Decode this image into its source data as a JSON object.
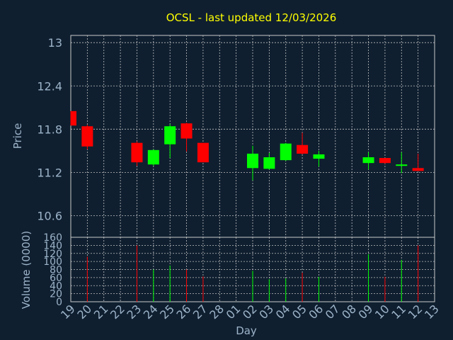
{
  "chart_data": {
    "title": "OCSL - last updated 12/03/2026",
    "xlabel": "Day",
    "price": {
      "type": "candlestick",
      "ylabel": "Price",
      "ylim": [
        10.3,
        13.1
      ],
      "yticks": [
        "10.6",
        "11.2",
        "11.8",
        "12.4",
        "13"
      ],
      "up_color": "#00ff00",
      "down_color": "#ff0000",
      "grid": true
    },
    "volume": {
      "type": "bar",
      "ylabel": "Volume (0000)",
      "ylim": [
        0,
        160
      ],
      "yticks": [
        "0",
        "20",
        "40",
        "60",
        "80",
        "100",
        "120",
        "140",
        "160"
      ],
      "grid": true
    },
    "x_ticks": [
      "19",
      "20",
      "21",
      "22",
      "23",
      "24",
      "25",
      "26",
      "27",
      "28",
      "01",
      "02",
      "03",
      "04",
      "05",
      "06",
      "07",
      "08",
      "09",
      "10",
      "11",
      "12",
      "13"
    ],
    "candles": [
      {
        "day": "19",
        "open": 12.05,
        "high": 12.05,
        "low": 11.85,
        "close": 11.85,
        "volume": 0
      },
      {
        "day": "20",
        "open": 11.84,
        "high": 11.86,
        "low": 11.52,
        "close": 11.56,
        "volume": 112
      },
      {
        "day": "23",
        "open": 11.61,
        "high": 11.63,
        "low": 11.29,
        "close": 11.34,
        "volume": 140
      },
      {
        "day": "24",
        "open": 11.31,
        "high": 11.52,
        "low": 11.29,
        "close": 11.51,
        "volume": 80
      },
      {
        "day": "25",
        "open": 11.59,
        "high": 11.87,
        "low": 11.4,
        "close": 11.84,
        "volume": 90
      },
      {
        "day": "26",
        "open": 11.88,
        "high": 11.89,
        "low": 11.49,
        "close": 11.67,
        "volume": 80
      },
      {
        "day": "27",
        "open": 11.61,
        "high": 11.61,
        "low": 11.34,
        "close": 11.34,
        "volume": 63
      },
      {
        "day": "02",
        "open": 11.26,
        "high": 11.57,
        "low": 11.09,
        "close": 11.46,
        "volume": 77
      },
      {
        "day": "03",
        "open": 11.25,
        "high": 11.47,
        "low": 11.24,
        "close": 11.41,
        "volume": 56
      },
      {
        "day": "04",
        "open": 11.37,
        "high": 11.61,
        "low": 11.36,
        "close": 11.6,
        "volume": 58
      },
      {
        "day": "05",
        "open": 11.58,
        "high": 11.75,
        "low": 11.45,
        "close": 11.46,
        "volume": 72
      },
      {
        "day": "06",
        "open": 11.39,
        "high": 11.5,
        "low": 11.28,
        "close": 11.45,
        "volume": 62
      },
      {
        "day": "09",
        "open": 11.33,
        "high": 11.48,
        "low": 11.24,
        "close": 11.41,
        "volume": 118
      },
      {
        "day": "10",
        "open": 11.4,
        "high": 11.4,
        "low": 11.32,
        "close": 11.33,
        "volume": 62
      },
      {
        "day": "11",
        "open": 11.3,
        "high": 11.48,
        "low": 11.19,
        "close": 11.31,
        "volume": 104
      },
      {
        "day": "12",
        "open": 11.26,
        "high": 11.46,
        "low": 11.22,
        "close": 11.22,
        "volume": 140
      }
    ]
  }
}
